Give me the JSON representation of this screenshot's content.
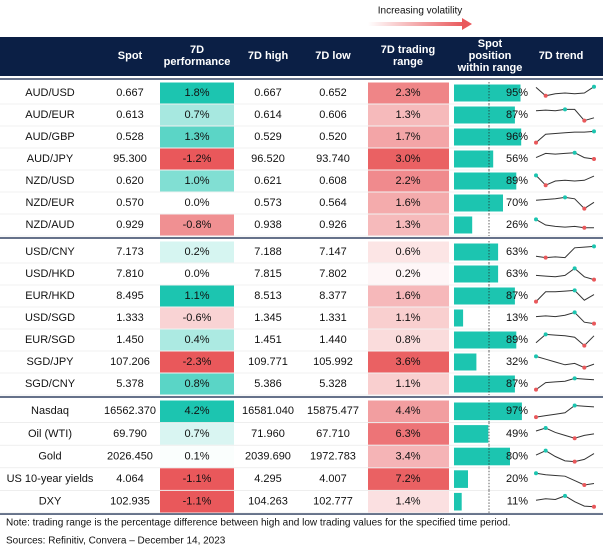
{
  "legend": {
    "label": "Increasing volatility"
  },
  "colors": {
    "header": "#0b1f45",
    "positive": "#1cc5b0",
    "negative": "#e9585b",
    "bar": "#1cc5b0",
    "trend": "#333333"
  },
  "header": {
    "columns": [
      [
        "Spot"
      ],
      [
        "7D",
        "performance"
      ],
      [
        "7D high"
      ],
      [
        "7D low"
      ],
      [
        "7D trading",
        "range"
      ],
      [
        "Spot",
        "position",
        "within range"
      ],
      [
        "7D trend"
      ]
    ]
  },
  "table": {
    "groups": [
      {
        "rows": [
          {
            "label": "AUD/USD",
            "spot": "0.667",
            "performance": {
              "value": 1.8,
              "label": "1.8%"
            },
            "high": "0.667",
            "low": "0.652",
            "range": {
              "value": 2.3,
              "label": "2.3%"
            },
            "position": {
              "value": 95,
              "label": "95%"
            },
            "trend": [
              0.9,
              0.3,
              0.45,
              0.5,
              0.45,
              0.5,
              0.95
            ]
          },
          {
            "label": "AUD/EUR",
            "spot": "0.613",
            "performance": {
              "value": 0.7,
              "label": "0.7%"
            },
            "high": "0.614",
            "low": "0.606",
            "range": {
              "value": 1.3,
              "label": "1.3%"
            },
            "position": {
              "value": 87,
              "label": "87%"
            },
            "trend": [
              0.8,
              0.85,
              0.8,
              0.9,
              0.9,
              0.1,
              0.3
            ]
          },
          {
            "label": "AUD/GBP",
            "spot": "0.528",
            "performance": {
              "value": 1.3,
              "label": "1.3%"
            },
            "high": "0.529",
            "low": "0.520",
            "range": {
              "value": 1.7,
              "label": "1.7%"
            },
            "position": {
              "value": 96,
              "label": "96%"
            },
            "trend": [
              0.1,
              0.7,
              0.75,
              0.8,
              0.85,
              0.85,
              0.9
            ]
          },
          {
            "label": "AUD/JPY",
            "spot": "95.300",
            "performance": {
              "value": -1.2,
              "label": "-1.2%"
            },
            "high": "96.520",
            "low": "93.740",
            "range": {
              "value": 3.0,
              "label": "3.0%"
            },
            "position": {
              "value": 56,
              "label": "56%"
            },
            "trend": [
              0.6,
              0.9,
              0.85,
              0.9,
              0.95,
              0.6,
              0.5
            ]
          },
          {
            "label": "NZD/USD",
            "spot": "0.620",
            "performance": {
              "value": 1.0,
              "label": "1.0%"
            },
            "high": "0.621",
            "low": "0.608",
            "range": {
              "value": 2.2,
              "label": "2.2%"
            },
            "position": {
              "value": 89,
              "label": "89%"
            },
            "trend": [
              0.9,
              0.2,
              0.5,
              0.55,
              0.5,
              0.55,
              0.85
            ]
          },
          {
            "label": "NZD/EUR",
            "spot": "0.570",
            "performance": {
              "value": 0.0,
              "label": "0.0%"
            },
            "high": "0.573",
            "low": "0.564",
            "range": {
              "value": 1.6,
              "label": "1.6%"
            },
            "position": {
              "value": 70,
              "label": "70%"
            },
            "trend": [
              0.7,
              0.75,
              0.8,
              0.9,
              0.8,
              0.1,
              0.55
            ]
          },
          {
            "label": "NZD/AUD",
            "spot": "0.929",
            "performance": {
              "value": -0.8,
              "label": "-0.8%"
            },
            "high": "0.938",
            "low": "0.926",
            "range": {
              "value": 1.3,
              "label": "1.3%"
            },
            "position": {
              "value": 26,
              "label": "26%"
            },
            "trend": [
              0.9,
              0.5,
              0.4,
              0.35,
              0.4,
              0.3,
              0.3
            ]
          }
        ]
      },
      {
        "rows": [
          {
            "label": "USD/CNY",
            "spot": "7.173",
            "performance": {
              "value": 0.2,
              "label": "0.2%"
            },
            "high": "7.188",
            "low": "7.147",
            "range": {
              "value": 0.6,
              "label": "0.6%"
            },
            "position": {
              "value": 63,
              "label": "63%"
            },
            "trend": [
              0.2,
              0.1,
              0.15,
              0.1,
              0.8,
              0.85,
              0.9
            ]
          },
          {
            "label": "USD/HKD",
            "spot": "7.810",
            "performance": {
              "value": 0.0,
              "label": "0.0%"
            },
            "high": "7.815",
            "low": "7.802",
            "range": {
              "value": 0.2,
              "label": "0.2%"
            },
            "position": {
              "value": 63,
              "label": "63%"
            },
            "trend": [
              0.4,
              0.35,
              0.3,
              0.4,
              0.9,
              0.3,
              0.1
            ]
          },
          {
            "label": "EUR/HKD",
            "spot": "8.495",
            "performance": {
              "value": 1.1,
              "label": "1.1%"
            },
            "high": "8.513",
            "low": "8.377",
            "range": {
              "value": 1.6,
              "label": "1.6%"
            },
            "position": {
              "value": 87,
              "label": "87%"
            },
            "trend": [
              0.1,
              0.8,
              0.8,
              0.85,
              0.9,
              0.2,
              0.6
            ]
          },
          {
            "label": "USD/SGD",
            "spot": "1.333",
            "performance": {
              "value": -0.6,
              "label": "-0.6%"
            },
            "high": "1.345",
            "low": "1.331",
            "range": {
              "value": 1.1,
              "label": "1.1%"
            },
            "position": {
              "value": 13,
              "label": "13%"
            },
            "trend": [
              0.6,
              0.65,
              0.6,
              0.7,
              0.9,
              0.2,
              0.1
            ]
          },
          {
            "label": "EUR/SGD",
            "spot": "1.450",
            "performance": {
              "value": 0.4,
              "label": "0.4%"
            },
            "high": "1.451",
            "low": "1.440",
            "range": {
              "value": 0.8,
              "label": "0.8%"
            },
            "position": {
              "value": 89,
              "label": "89%"
            },
            "trend": [
              0.3,
              0.9,
              0.85,
              0.8,
              0.7,
              0.1,
              0.8
            ]
          },
          {
            "label": "SGD/JPY",
            "spot": "107.206",
            "performance": {
              "value": -2.3,
              "label": "-2.3%"
            },
            "high": "109.771",
            "low": "105.992",
            "range": {
              "value": 3.6,
              "label": "3.6%"
            },
            "position": {
              "value": 32,
              "label": "32%"
            },
            "trend": [
              0.9,
              0.7,
              0.5,
              0.3,
              0.4,
              0.1,
              0.35
            ]
          },
          {
            "label": "SGD/CNY",
            "spot": "5.378",
            "performance": {
              "value": 0.8,
              "label": "0.8%"
            },
            "high": "5.386",
            "low": "5.328",
            "range": {
              "value": 1.1,
              "label": "1.1%"
            },
            "position": {
              "value": 87,
              "label": "87%"
            },
            "trend": [
              0.1,
              0.6,
              0.65,
              0.7,
              0.9,
              0.85,
              0.8
            ]
          }
        ]
      },
      {
        "rows": [
          {
            "label": "Nasdaq",
            "spot": "16562.370",
            "performance": {
              "value": 4.2,
              "label": "4.2%"
            },
            "high": "16581.040",
            "low": "15875.477",
            "range": {
              "value": 4.4,
              "label": "4.4%"
            },
            "position": {
              "value": 97,
              "label": "97%"
            },
            "trend": [
              0.1,
              0.2,
              0.3,
              0.4,
              0.9,
              0.85,
              0.8
            ]
          },
          {
            "label": "Oil (WTI)",
            "spot": "69.790",
            "performance": {
              "value": 0.7,
              "label": "0.7%"
            },
            "high": "71.960",
            "low": "67.710",
            "range": {
              "value": 6.3,
              "label": "6.3%"
            },
            "position": {
              "value": 49,
              "label": "49%"
            },
            "trend": [
              0.7,
              0.9,
              0.6,
              0.4,
              0.2,
              0.4,
              0.5
            ]
          },
          {
            "label": "Gold",
            "spot": "2026.450",
            "performance": {
              "value": 0.1,
              "label": "0.1%"
            },
            "high": "2039.690",
            "low": "1972.783",
            "range": {
              "value": 3.4,
              "label": "3.4%"
            },
            "position": {
              "value": 80,
              "label": "80%"
            },
            "trend": [
              0.6,
              0.9,
              0.5,
              0.2,
              0.15,
              0.3,
              0.7
            ]
          },
          {
            "label": "US 10-year yields",
            "spot": "4.064",
            "performance": {
              "value": -1.1,
              "label": "-1.1%"
            },
            "high": "4.295",
            "low": "4.007",
            "range": {
              "value": 7.2,
              "label": "7.2%"
            },
            "position": {
              "value": 20,
              "label": "20%"
            },
            "trend": [
              0.9,
              0.8,
              0.75,
              0.7,
              0.4,
              0.1,
              0.2
            ]
          },
          {
            "label": "DXY",
            "spot": "102.935",
            "performance": {
              "value": -1.1,
              "label": "-1.1%"
            },
            "high": "104.263",
            "low": "102.777",
            "range": {
              "value": 1.4,
              "label": "1.4%"
            },
            "position": {
              "value": 11,
              "label": "11%"
            },
            "trend": [
              0.6,
              0.7,
              0.65,
              0.9,
              0.5,
              0.2,
              0.15
            ]
          }
        ]
      }
    ]
  },
  "footer": {
    "note": "Note: trading range is the percentage difference between high and low trading values for the specified time period.",
    "sources": "Sources: Refinitiv, Convera – December 14, 2023"
  }
}
